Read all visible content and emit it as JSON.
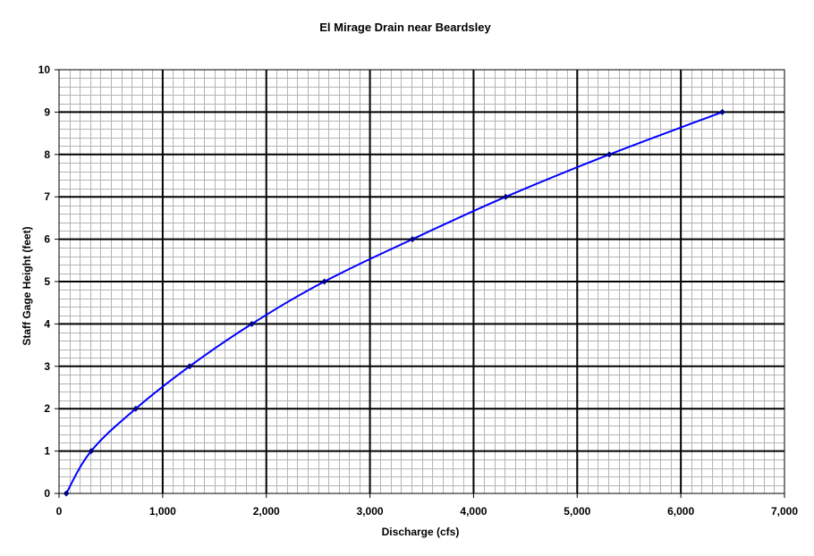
{
  "chart_data": {
    "type": "line",
    "title": "El Mirage Drain near Beardsley",
    "xlabel": "Discharge (cfs)",
    "ylabel": "Staff Gage Height (feet)",
    "xlim": [
      0,
      7000
    ],
    "ylim": [
      0,
      10
    ],
    "x_ticks": [
      "0",
      "1,000",
      "2,000",
      "3,000",
      "4,000",
      "5,000",
      "6,000",
      "7,000"
    ],
    "y_ticks": [
      "0",
      "1",
      "2",
      "3",
      "4",
      "5",
      "6",
      "7",
      "8",
      "9",
      "10"
    ],
    "grid": true,
    "legend": "none",
    "series": [
      {
        "color": "#0000ff",
        "marker_color": "#000080",
        "x": [
          70,
          310,
          740,
          1260,
          1860,
          2560,
          3410,
          4310,
          5310,
          6400
        ],
        "y": [
          0,
          1,
          2,
          3,
          4,
          5,
          6,
          7,
          8,
          9
        ]
      }
    ]
  }
}
